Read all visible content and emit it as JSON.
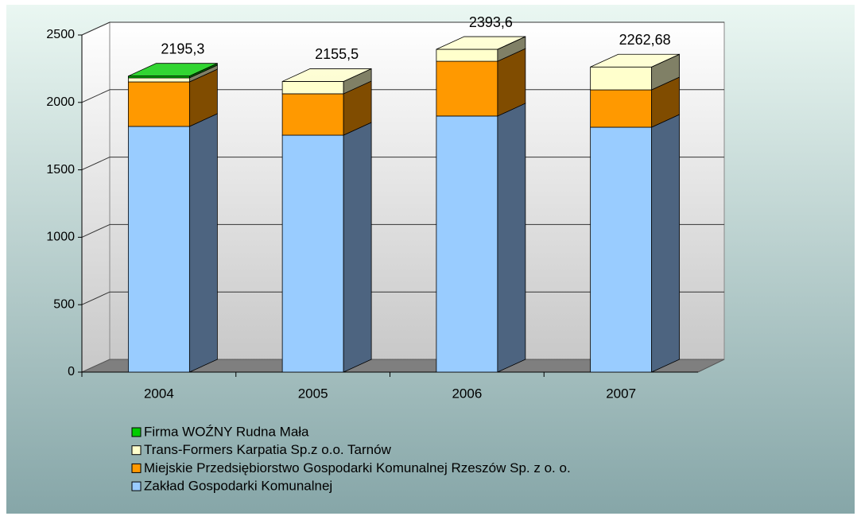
{
  "chart_data": {
    "type": "bar3d_stacked",
    "categories": [
      "2004",
      "2005",
      "2006",
      "2007"
    ],
    "series": [
      {
        "name": "Zakład Gospodarki Komunalnej",
        "color": "#99ccff",
        "side": "#4d6480",
        "values": [
          1822,
          1757,
          1899,
          1816
        ]
      },
      {
        "name": "Miejskie Przedsiębiorstwo Gospodarki Komunalnej Rzeszów Sp. z o. o.",
        "color": "#ff9900",
        "side": "#804c00",
        "values": [
          330,
          307,
          406,
          277
        ]
      },
      {
        "name": "Trans-Formers Karpatia Sp.z o.o. Tarnów",
        "color": "#ffffcc",
        "side": "#808066",
        "values": [
          30,
          91.5,
          88.6,
          169.68
        ]
      },
      {
        "name": "Firma WOŹNY Rudna Mała",
        "color": "#00cc00",
        "side": "#006600",
        "values": [
          13.3,
          0,
          0,
          0
        ]
      }
    ],
    "totals": [
      2195.3,
      2155.5,
      2393.6,
      2262.68
    ],
    "total_labels": [
      "2195,3",
      "2155,5",
      "2393,6",
      "2262,68"
    ],
    "ylim": [
      0,
      2500
    ],
    "yticks": [
      0,
      500,
      1000,
      1500,
      2000,
      2500
    ],
    "grid": true
  }
}
